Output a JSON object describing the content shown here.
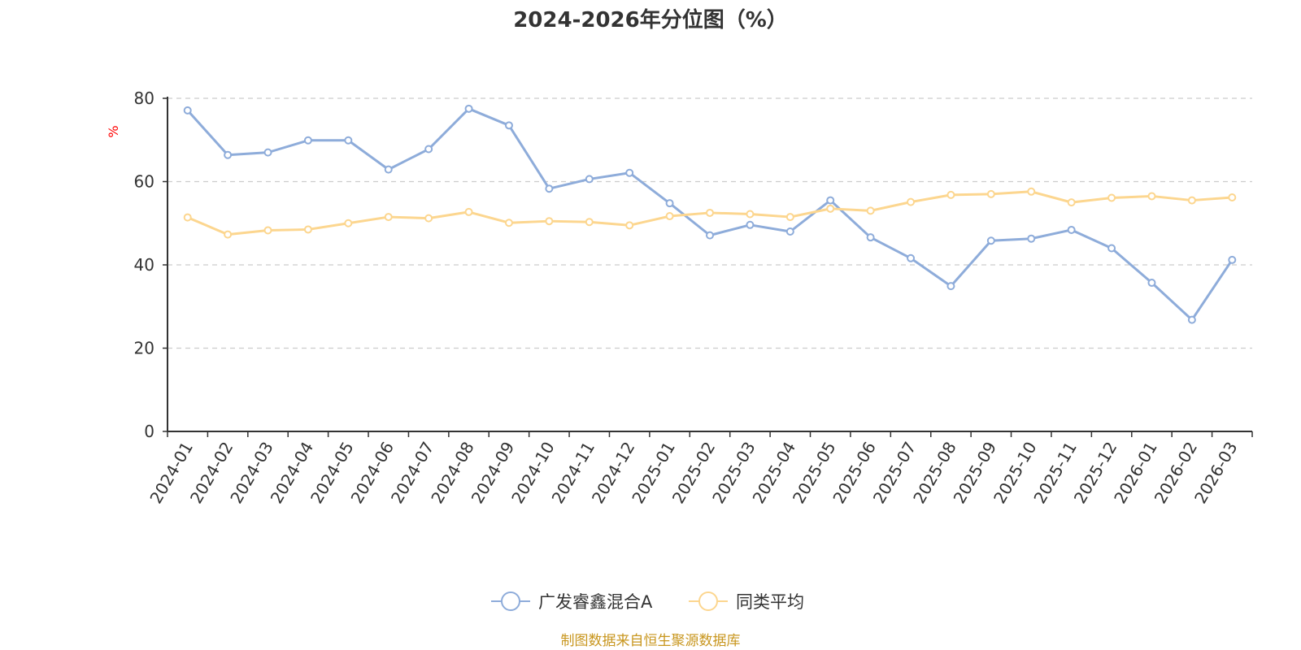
{
  "chart_data": {
    "type": "line",
    "title": "2024-2026年分位图（%）",
    "ylabel": "%",
    "xlabel": "",
    "ylim": [
      0,
      80
    ],
    "yticks": [
      0,
      20,
      40,
      60,
      80
    ],
    "grid": true,
    "legend_position": "bottom",
    "categories": [
      "2024-01",
      "2024-02",
      "2024-03",
      "2024-04",
      "2024-05",
      "2024-06",
      "2024-07",
      "2024-08",
      "2024-09",
      "2024-10",
      "2024-11",
      "2024-12",
      "2025-01",
      "2025-02",
      "2025-03",
      "2025-04",
      "2025-05",
      "2025-06",
      "2025-07",
      "2025-08",
      "2025-09",
      "2025-10",
      "2025-11",
      "2025-12",
      "2026-01",
      "2026-02",
      "2026-03"
    ],
    "series": [
      {
        "name": "广发睿鑫混合A",
        "color": "#8eacda",
        "values": [
          77.1,
          66.4,
          67.0,
          69.9,
          69.9,
          62.9,
          67.8,
          77.5,
          73.5,
          58.3,
          60.6,
          62.1,
          54.8,
          47.1,
          49.6,
          48.0,
          55.5,
          46.6,
          41.6,
          34.9,
          45.8,
          46.3,
          48.4,
          44.0,
          35.7,
          26.8,
          41.2
        ]
      },
      {
        "name": "同类平均",
        "color": "#fcd68f",
        "values": [
          51.4,
          47.3,
          48.3,
          48.5,
          50.0,
          51.5,
          51.2,
          52.7,
          50.1,
          50.5,
          50.3,
          49.5,
          51.7,
          52.5,
          52.2,
          51.5,
          53.5,
          53.0,
          55.1,
          56.8,
          57.0,
          57.6,
          55.0,
          56.1,
          56.5,
          55.5,
          56.2
        ]
      }
    ]
  },
  "footer": {
    "source": "制图数据来自恒生聚源数据库"
  },
  "colors": {
    "axis": "#333333",
    "grid": "#cccccc",
    "unit": "#ff0000",
    "footer": "#c8961e",
    "marker_fill": "#ffffff"
  }
}
